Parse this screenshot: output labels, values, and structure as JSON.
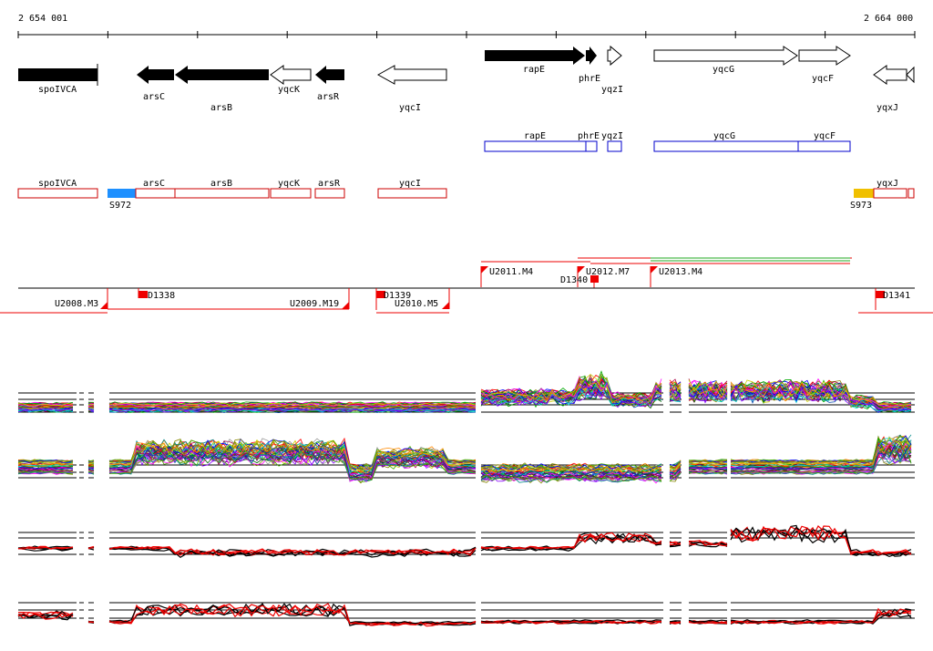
{
  "coords": {
    "start": "2 654 001",
    "end": "2 664 000"
  },
  "colors": {
    "gene_fill": "#000000",
    "gene_outline": "#000000",
    "cds_box": "#0000cc",
    "annot_box": "#cc0000",
    "s972": "#1e90ff",
    "s973": "#f0c000",
    "promoter": "#ee0000",
    "green_line": "#22aa22",
    "track_line": "#000000"
  },
  "genes": [
    {
      "name": "spoIVCA",
      "strand": "box",
      "filled": true
    },
    {
      "name": "arsC",
      "strand": "-",
      "filled": true
    },
    {
      "name": "arsB",
      "strand": "-",
      "filled": true
    },
    {
      "name": "yqcK",
      "strand": "-",
      "filled": false
    },
    {
      "name": "arsR",
      "strand": "-",
      "filled": true
    },
    {
      "name": "yqcI",
      "strand": "-",
      "filled": false
    },
    {
      "name": "rapE",
      "strand": "+",
      "filled": true
    },
    {
      "name": "phrE",
      "strand": "+",
      "filled": true
    },
    {
      "name": "yqzI",
      "strand": "+",
      "filled": false
    },
    {
      "name": "yqcG",
      "strand": "+",
      "filled": false
    },
    {
      "name": "yqcF",
      "strand": "+",
      "filled": false
    },
    {
      "name": "yqxJ",
      "strand": "-",
      "filled": false
    }
  ],
  "cds_boxes": [
    "rapE",
    "phrE",
    "yqzI",
    "yqcG",
    "yqcF"
  ],
  "annot_boxes": [
    "spoIVCA",
    "arsC",
    "arsB",
    "yqcK",
    "arsR",
    "yqcI",
    "yqxJ"
  ],
  "special_blocks": [
    "S972",
    "S973"
  ],
  "upstream_labels": [
    "U2011.M4",
    "U2012.M7",
    "U2013.M4"
  ],
  "downstream_labels": [
    "U2008.M3",
    "U2009.M19",
    "U2010.M5"
  ],
  "d_labels": [
    "D1338",
    "D1339",
    "D1340",
    "D1341"
  ],
  "tracks": [
    "expression-panel-1",
    "expression-panel-2",
    "expression-panel-3",
    "expression-panel-4"
  ]
}
